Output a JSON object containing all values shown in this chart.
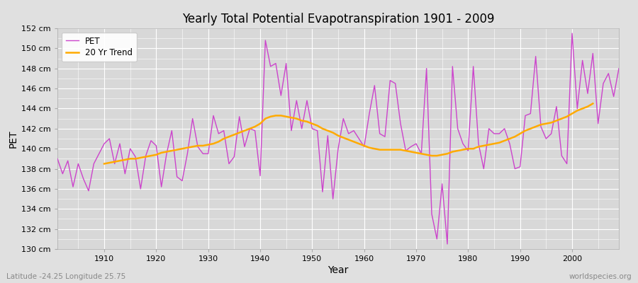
{
  "title": "Yearly Total Potential Evapotranspiration 1901 - 2009",
  "xlabel": "Year",
  "ylabel": "PET",
  "footnote_left": "Latitude -24.25 Longitude 25.75",
  "footnote_right": "worldspecies.org",
  "legend_pet": "PET",
  "legend_trend": "20 Yr Trend",
  "pet_color": "#cc44cc",
  "trend_color": "#ffaa00",
  "background_color": "#e0e0e0",
  "plot_bg_color": "#d8d8d8",
  "ylim": [
    130,
    152
  ],
  "yticks": [
    130,
    132,
    134,
    136,
    138,
    140,
    142,
    144,
    146,
    148,
    150,
    152
  ],
  "xlim": [
    1901,
    2009
  ],
  "xticks": [
    1910,
    1920,
    1930,
    1940,
    1950,
    1960,
    1970,
    1980,
    1990,
    2000
  ],
  "years": [
    1901,
    1902,
    1903,
    1904,
    1905,
    1906,
    1907,
    1908,
    1909,
    1910,
    1911,
    1912,
    1913,
    1914,
    1915,
    1916,
    1917,
    1918,
    1919,
    1920,
    1921,
    1922,
    1923,
    1924,
    1925,
    1926,
    1927,
    1928,
    1929,
    1930,
    1931,
    1932,
    1933,
    1934,
    1935,
    1936,
    1937,
    1938,
    1939,
    1940,
    1941,
    1942,
    1943,
    1944,
    1945,
    1946,
    1947,
    1948,
    1949,
    1950,
    1951,
    1952,
    1953,
    1954,
    1955,
    1956,
    1957,
    1958,
    1959,
    1960,
    1961,
    1962,
    1963,
    1964,
    1965,
    1966,
    1967,
    1968,
    1969,
    1970,
    1971,
    1972,
    1973,
    1974,
    1975,
    1976,
    1977,
    1978,
    1979,
    1980,
    1981,
    1982,
    1983,
    1984,
    1985,
    1986,
    1987,
    1988,
    1989,
    1990,
    1991,
    1992,
    1993,
    1994,
    1995,
    1996,
    1997,
    1998,
    1999,
    2000,
    2001,
    2002,
    2003,
    2004,
    2005,
    2006,
    2007,
    2008,
    2009
  ],
  "pet": [
    139.0,
    137.5,
    138.8,
    136.2,
    138.5,
    137.0,
    135.8,
    138.5,
    139.5,
    140.5,
    141.0,
    138.5,
    140.5,
    137.5,
    140.0,
    139.2,
    136.0,
    139.3,
    140.8,
    140.3,
    136.2,
    139.5,
    141.8,
    137.2,
    136.8,
    139.5,
    143.0,
    140.2,
    139.5,
    139.5,
    143.3,
    141.5,
    141.8,
    138.5,
    139.2,
    143.2,
    140.2,
    142.0,
    141.8,
    137.3,
    150.8,
    148.2,
    148.5,
    145.3,
    148.5,
    141.8,
    144.8,
    142.0,
    144.8,
    142.0,
    141.8,
    135.7,
    141.3,
    135.0,
    140.0,
    143.0,
    141.5,
    141.8,
    141.0,
    140.2,
    143.5,
    146.3,
    141.5,
    141.2,
    146.8,
    146.5,
    142.5,
    139.8,
    140.2,
    140.5,
    139.5,
    148.0,
    133.5,
    131.0,
    136.5,
    130.5,
    148.2,
    142.0,
    140.5,
    139.8,
    148.2,
    140.5,
    138.0,
    142.0,
    141.5,
    141.5,
    142.0,
    140.5,
    138.0,
    138.2,
    143.3,
    143.5,
    149.2,
    142.2,
    141.0,
    141.5,
    144.2,
    139.3,
    138.5,
    151.5,
    144.0,
    148.8,
    145.5,
    149.5,
    142.5,
    146.5,
    147.5,
    145.2,
    148.0
  ],
  "trend": [
    null,
    null,
    null,
    null,
    null,
    null,
    null,
    null,
    null,
    138.5,
    138.6,
    138.7,
    138.8,
    138.9,
    139.0,
    139.0,
    139.1,
    139.2,
    139.3,
    139.4,
    139.6,
    139.7,
    139.8,
    139.9,
    140.0,
    140.1,
    140.2,
    140.3,
    140.3,
    140.4,
    140.5,
    140.7,
    141.0,
    141.2,
    141.4,
    141.6,
    141.8,
    142.0,
    142.2,
    142.5,
    143.0,
    143.2,
    143.3,
    143.3,
    143.2,
    143.1,
    143.0,
    142.8,
    142.7,
    142.5,
    142.3,
    142.0,
    141.8,
    141.6,
    141.3,
    141.1,
    140.9,
    140.7,
    140.5,
    140.3,
    140.1,
    140.0,
    139.9,
    139.9,
    139.9,
    139.9,
    139.9,
    139.8,
    139.7,
    139.6,
    139.5,
    139.4,
    139.3,
    139.3,
    139.4,
    139.5,
    139.7,
    139.8,
    139.9,
    140.0,
    140.0,
    140.2,
    140.3,
    140.4,
    140.5,
    140.6,
    140.8,
    141.0,
    141.2,
    141.5,
    141.8,
    142.0,
    142.2,
    142.4,
    142.5,
    142.6,
    142.8,
    143.0,
    143.2,
    143.5,
    143.8,
    144.0,
    144.2,
    144.5,
    null,
    null,
    null,
    null,
    null
  ]
}
